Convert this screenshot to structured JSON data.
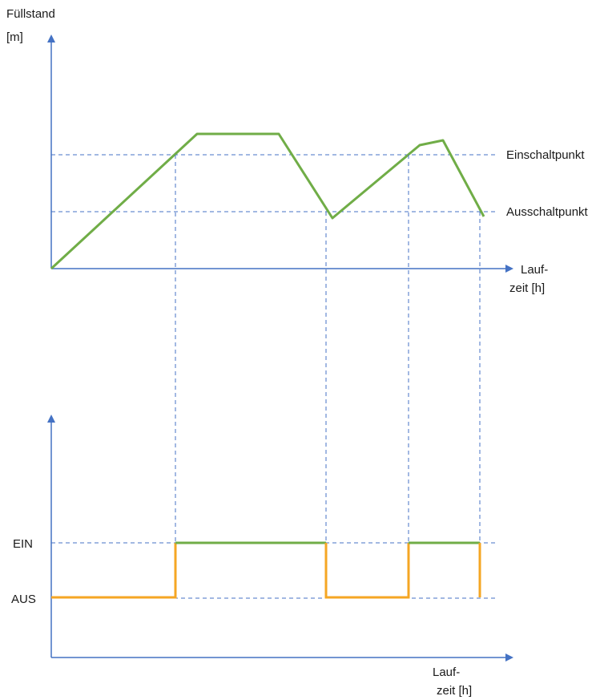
{
  "top_chart": {
    "y_label_line1": "Füllstand",
    "y_label_line2": "[m]",
    "x_label_line1": "Lauf-",
    "x_label_line2": "zeit [h]",
    "threshold_on": "Einschaltpunkt",
    "threshold_off": "Ausschaltpunkt"
  },
  "bottom_chart": {
    "level_on": "EIN",
    "level_off": "AUS",
    "x_label_line1": "Lauf-",
    "x_label_line2": "zeit [h]"
  },
  "colors": {
    "axis": "#4472c4",
    "level_line": "#70ad47",
    "off_state": "#f5a623",
    "on_state": "#70ad47"
  }
}
